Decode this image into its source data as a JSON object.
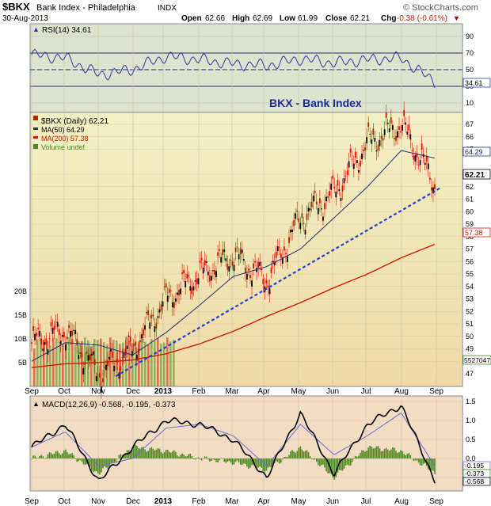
{
  "header": {
    "symbol": "$BKX",
    "name": "Bank Index - Philadelphia",
    "exchange": "INDX",
    "date": "30-Aug-2013",
    "open_label": "Open",
    "open": "62.66",
    "high_label": "High",
    "high": "62.69",
    "low_label": "Low",
    "low": "61.99",
    "close_label": "Close",
    "close": "62.21",
    "chg_label": "Chg",
    "chg": "-0.38 (-0.61%)",
    "chg_arrow": "▼",
    "copyright": "© StockCharts.com"
  },
  "colors": {
    "panel_top_bg": "#dde3cc",
    "price_bg_top": "#f2f0c4",
    "price_bg_bottom": "#f0d9a6",
    "macd_bg": "#f3dcc4",
    "rsi_line": "#3333aa",
    "ma50": "#1f2b7a",
    "ma200": "#cc1a00",
    "candle": "#cc1a00",
    "trendline": "#1f3fd0",
    "macd_line": "#000000",
    "signal_line": "#6b6bd6",
    "hist": "#4a8a20"
  },
  "rsi_panel": {
    "legend": "RSI(14) 34.61",
    "ticks": [
      "90",
      "70",
      "50",
      "30",
      "10"
    ],
    "current": "34.61"
  },
  "price_panel": {
    "annotation": "BKX - Bank Index",
    "legend": [
      {
        "text": "$BKX (Daily) 62.21"
      },
      {
        "text": "MA(50) 64.29"
      },
      {
        "text": "MA(200) 57.38"
      },
      {
        "text": "Volume undef"
      }
    ],
    "right_ticks": [
      "67",
      "66",
      "65",
      "63",
      "62",
      "61",
      "60",
      "59",
      "58",
      "57",
      "56",
      "55",
      "54",
      "53",
      "52",
      "51",
      "50",
      "49",
      "48",
      "47"
    ],
    "tags": {
      "ma50": "64.29",
      "close": "62.21",
      "ma200": "57.38",
      "volume": "5527047"
    },
    "volume_ticks": [
      "20B",
      "15B",
      "10B",
      "5B"
    ]
  },
  "macd_panel": {
    "legend_main": "MACD(12,26,9) -0.568, -0.195, -0.373",
    "ticks": [
      "1.5",
      "1.0",
      "0.5",
      "0.0",
      "-0.5"
    ],
    "tags": [
      "-0.195",
      "-0.373",
      "-0.568"
    ]
  },
  "x_axis": {
    "months": [
      "Sep",
      "Oct",
      "Nov",
      "Dec",
      "2013",
      "Feb",
      "Mar",
      "Apr",
      "May",
      "Jun",
      "Jul",
      "Aug",
      "Sep"
    ]
  },
  "chart_data": [
    {
      "type": "line",
      "name": "RSI(14)",
      "x": [
        "Sep",
        "Oct",
        "Nov",
        "Dec",
        "Jan",
        "Feb",
        "Mar",
        "Apr",
        "May",
        "Jun",
        "Jul",
        "Aug",
        "Sep"
      ],
      "values": [
        68,
        64,
        44,
        50,
        66,
        62,
        57,
        55,
        63,
        58,
        62,
        64,
        35
      ],
      "ylim": [
        0,
        100
      ],
      "reference_lines": [
        70,
        50,
        30
      ]
    },
    {
      "type": "line",
      "title": "BKX - Bank Index",
      "x": [
        "Sep",
        "Oct",
        "Nov",
        "Dec",
        "Jan",
        "Feb",
        "Mar",
        "Apr",
        "May",
        "Jun",
        "Jul",
        "Aug",
        "Aug-30"
      ],
      "series": [
        {
          "name": "$BKX (Daily)",
          "values": [
            49.5,
            50.5,
            47.0,
            49.0,
            53.0,
            55.0,
            56.5,
            54.5,
            59.5,
            61.5,
            65.5,
            67.0,
            62.21
          ]
        },
        {
          "name": "MA(50)",
          "values": [
            48.0,
            49.5,
            49.3,
            48.5,
            50.3,
            52.5,
            54.8,
            55.6,
            57.0,
            59.5,
            62.0,
            64.9,
            64.29
          ]
        },
        {
          "name": "MA(200)",
          "values": [
            47.5,
            47.8,
            47.9,
            48.1,
            48.6,
            49.4,
            50.4,
            51.6,
            52.7,
            53.9,
            55.0,
            56.3,
            57.38
          ]
        },
        {
          "name": "Trendline",
          "values": [
            null,
            null,
            46.8,
            48.4,
            50.0,
            51.6,
            53.1,
            54.7,
            56.3,
            57.9,
            59.4,
            61.0,
            61.9
          ]
        }
      ],
      "ylim": [
        46,
        68
      ],
      "volume_ylim": [
        0,
        25
      ]
    },
    {
      "type": "line",
      "name": "MACD(12,26,9)",
      "x": [
        "Sep",
        "Oct",
        "Nov",
        "Dec",
        "Jan",
        "Feb",
        "Mar",
        "Apr",
        "May",
        "Jun",
        "Jul",
        "Aug",
        "Sep"
      ],
      "series": [
        {
          "name": "MACD",
          "values": [
            0.3,
            0.9,
            -0.6,
            0.3,
            1.0,
            0.9,
            0.5,
            -0.5,
            1.2,
            -0.4,
            0.9,
            1.4,
            -0.568
          ]
        },
        {
          "name": "Signal",
          "values": [
            0.3,
            0.7,
            -0.2,
            0.0,
            0.8,
            0.9,
            0.6,
            -0.2,
            0.9,
            0.1,
            0.6,
            1.2,
            -0.195
          ]
        },
        {
          "name": "Histogram",
          "values": [
            0.0,
            0.2,
            -0.4,
            0.3,
            0.2,
            0.0,
            -0.1,
            -0.3,
            0.3,
            -0.5,
            0.3,
            0.2,
            -0.373
          ]
        }
      ],
      "ylim": [
        -0.6,
        1.6
      ]
    }
  ]
}
